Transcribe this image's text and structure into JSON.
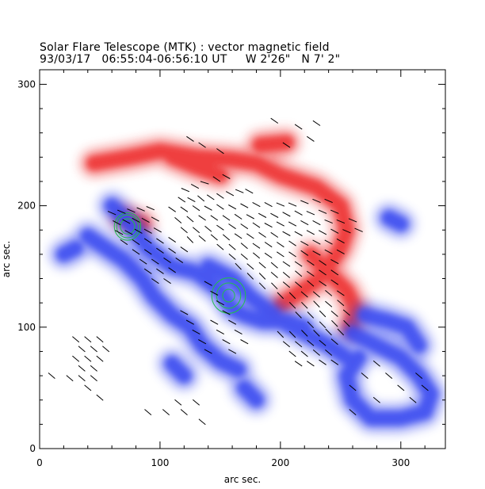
{
  "header": {
    "title": "Solar Flare Telescope (MTK) : vector magnetic field",
    "subtitle": "93/03/17   06:55:04-06:56:10 UT     W 2'26\"   N 7' 2\""
  },
  "axes": {
    "xlabel": "arc sec.",
    "ylabel": "arc sec.",
    "xlim": [
      0,
      337
    ],
    "ylim": [
      0,
      312
    ],
    "xticks": [
      "0",
      "100",
      "200",
      "300"
    ],
    "yticks": [
      "0",
      "100",
      "200",
      "300"
    ],
    "xtick_values": [
      0,
      100,
      200,
      300
    ],
    "ytick_values": [
      0,
      100,
      200,
      300
    ]
  },
  "colors": {
    "positive_polarity": "#ee3030",
    "negative_polarity": "#3a4cf0",
    "contour": "#22c04a",
    "vectors": "#000000"
  },
  "magnetogram": {
    "positive_regions": [
      [
        [
          45,
          235
        ],
        [
          75,
          240
        ],
        [
          100,
          245
        ],
        [
          130,
          240
        ],
        [
          160,
          238
        ],
        [
          180,
          235
        ],
        [
          200,
          225
        ],
        [
          230,
          215
        ],
        [
          250,
          200
        ],
        [
          255,
          180
        ],
        [
          250,
          165
        ],
        [
          240,
          150
        ],
        [
          230,
          138
        ],
        [
          215,
          128
        ],
        [
          200,
          118
        ]
      ],
      [
        [
          225,
          160
        ],
        [
          240,
          145
        ],
        [
          255,
          130
        ],
        [
          262,
          115
        ],
        [
          258,
          100
        ]
      ],
      [
        [
          70,
          190
        ],
        [
          85,
          185
        ]
      ],
      [
        [
          110,
          240
        ],
        [
          130,
          232
        ],
        [
          150,
          225
        ]
      ],
      [
        [
          183,
          250
        ],
        [
          205,
          252
        ]
      ]
    ],
    "negative_regions": [
      [
        [
          60,
          200
        ],
        [
          75,
          185
        ],
        [
          90,
          165
        ],
        [
          110,
          150
        ],
        [
          130,
          145
        ],
        [
          150,
          130
        ],
        [
          160,
          115
        ],
        [
          170,
          110
        ],
        [
          185,
          105
        ],
        [
          205,
          105
        ],
        [
          220,
          100
        ]
      ],
      [
        [
          40,
          175
        ],
        [
          55,
          165
        ],
        [
          70,
          155
        ],
        [
          85,
          140
        ],
        [
          95,
          125
        ],
        [
          110,
          110
        ],
        [
          125,
          100
        ],
        [
          135,
          85
        ],
        [
          150,
          72
        ],
        [
          165,
          65
        ]
      ],
      [
        [
          140,
          150
        ],
        [
          160,
          140
        ],
        [
          175,
          125
        ],
        [
          195,
          110
        ]
      ],
      [
        [
          260,
          95
        ],
        [
          280,
          85
        ],
        [
          300,
          75
        ],
        [
          315,
          60
        ],
        [
          325,
          45
        ],
        [
          320,
          30
        ],
        [
          300,
          25
        ],
        [
          275,
          25
        ],
        [
          260,
          40
        ],
        [
          255,
          60
        ],
        [
          265,
          75
        ]
      ],
      [
        [
          270,
          110
        ],
        [
          290,
          105
        ],
        [
          305,
          100
        ],
        [
          315,
          85
        ]
      ],
      [
        [
          200,
          105
        ],
        [
          220,
          95
        ],
        [
          240,
          85
        ],
        [
          255,
          75
        ]
      ],
      [
        [
          290,
          190
        ],
        [
          300,
          185
        ]
      ],
      [
        [
          30,
          165
        ],
        [
          20,
          160
        ]
      ],
      [
        [
          110,
          70
        ],
        [
          120,
          60
        ]
      ],
      [
        [
          170,
          50
        ],
        [
          180,
          40
        ]
      ]
    ],
    "sunspot_contours": [
      {
        "center": [
          73,
          183
        ],
        "radius": [
          11,
          9,
          6
        ]
      },
      {
        "center": [
          157,
          126
        ],
        "radius": [
          14,
          10,
          5
        ]
      }
    ],
    "vectors": [
      [
        121,
        213,
        -0.4
      ],
      [
        129,
        216,
        -0.5
      ],
      [
        137,
        219,
        -0.3
      ],
      [
        147,
        222,
        -0.6
      ],
      [
        155,
        224,
        -0.5
      ],
      [
        118,
        205,
        -0.6
      ],
      [
        126,
        205,
        -0.5
      ],
      [
        134,
        206,
        -0.7
      ],
      [
        142,
        207,
        -0.6
      ],
      [
        150,
        208,
        -0.6
      ],
      [
        158,
        210,
        -0.5
      ],
      [
        166,
        212,
        -0.4
      ],
      [
        174,
        212,
        -0.5
      ],
      [
        110,
        197,
        -0.6
      ],
      [
        120,
        197,
        -0.6
      ],
      [
        130,
        198,
        -0.6
      ],
      [
        140,
        198,
        -0.5
      ],
      [
        150,
        199,
        -0.6
      ],
      [
        160,
        199,
        -0.5
      ],
      [
        170,
        200,
        -0.5
      ],
      [
        180,
        201,
        -0.5
      ],
      [
        190,
        201,
        -0.5
      ],
      [
        200,
        201,
        -0.4
      ],
      [
        210,
        201,
        -0.4
      ],
      [
        220,
        203,
        -0.4
      ],
      [
        230,
        204,
        -0.4
      ],
      [
        240,
        204,
        -0.4
      ],
      [
        115,
        188,
        -0.7
      ],
      [
        125,
        189,
        -0.7
      ],
      [
        135,
        190,
        -0.6
      ],
      [
        145,
        190,
        -0.6
      ],
      [
        155,
        190,
        -0.6
      ],
      [
        165,
        191,
        -0.6
      ],
      [
        175,
        191,
        -0.5
      ],
      [
        185,
        192,
        -0.5
      ],
      [
        195,
        192,
        -0.5
      ],
      [
        205,
        193,
        -0.5
      ],
      [
        215,
        194,
        -0.5
      ],
      [
        225,
        194,
        -0.4
      ],
      [
        235,
        195,
        -0.4
      ],
      [
        245,
        195,
        -0.4
      ],
      [
        120,
        180,
        -0.7
      ],
      [
        130,
        180,
        -0.7
      ],
      [
        140,
        181,
        -0.7
      ],
      [
        150,
        182,
        -0.6
      ],
      [
        160,
        183,
        -0.6
      ],
      [
        170,
        183,
        -0.6
      ],
      [
        180,
        184,
        -0.6
      ],
      [
        190,
        184,
        -0.5
      ],
      [
        200,
        185,
        -0.5
      ],
      [
        210,
        185,
        -0.5
      ],
      [
        220,
        186,
        -0.5
      ],
      [
        230,
        186,
        -0.5
      ],
      [
        240,
        187,
        -0.4
      ],
      [
        250,
        187,
        -0.4
      ],
      [
        260,
        188,
        -0.4
      ],
      [
        125,
        172,
        -0.8
      ],
      [
        135,
        173,
        -0.7
      ],
      [
        145,
        174,
        -0.7
      ],
      [
        155,
        174,
        -0.7
      ],
      [
        165,
        175,
        -0.6
      ],
      [
        175,
        175,
        -0.6
      ],
      [
        185,
        176,
        -0.6
      ],
      [
        195,
        176,
        -0.6
      ],
      [
        205,
        177,
        -0.5
      ],
      [
        215,
        177,
        -0.5
      ],
      [
        225,
        178,
        -0.5
      ],
      [
        235,
        178,
        -0.5
      ],
      [
        245,
        179,
        -0.5
      ],
      [
        255,
        179,
        -0.4
      ],
      [
        265,
        180,
        -0.4
      ],
      [
        150,
        166,
        -0.7
      ],
      [
        160,
        166,
        -0.7
      ],
      [
        170,
        167,
        -0.7
      ],
      [
        180,
        167,
        -0.6
      ],
      [
        190,
        168,
        -0.6
      ],
      [
        200,
        168,
        -0.6
      ],
      [
        210,
        169,
        -0.6
      ],
      [
        220,
        169,
        -0.5
      ],
      [
        230,
        170,
        -0.5
      ],
      [
        240,
        170,
        -0.5
      ],
      [
        250,
        171,
        -0.5
      ],
      [
        160,
        158,
        -0.7
      ],
      [
        170,
        158,
        -0.7
      ],
      [
        180,
        159,
        -0.7
      ],
      [
        190,
        159,
        -0.6
      ],
      [
        200,
        160,
        -0.6
      ],
      [
        210,
        160,
        -0.6
      ],
      [
        220,
        161,
        -0.6
      ],
      [
        230,
        161,
        -0.5
      ],
      [
        240,
        162,
        -0.5
      ],
      [
        250,
        162,
        -0.5
      ],
      [
        165,
        150,
        -0.8
      ],
      [
        175,
        150,
        -0.7
      ],
      [
        185,
        151,
        -0.7
      ],
      [
        195,
        151,
        -0.7
      ],
      [
        205,
        152,
        -0.6
      ],
      [
        215,
        152,
        -0.6
      ],
      [
        225,
        153,
        -0.6
      ],
      [
        235,
        153,
        -0.6
      ],
      [
        245,
        154,
        -0.5
      ],
      [
        175,
        142,
        -0.8
      ],
      [
        185,
        142,
        -0.8
      ],
      [
        195,
        143,
        -0.7
      ],
      [
        205,
        143,
        -0.7
      ],
      [
        215,
        144,
        -0.7
      ],
      [
        225,
        144,
        -0.6
      ],
      [
        235,
        145,
        -0.6
      ],
      [
        245,
        145,
        -0.6
      ],
      [
        185,
        134,
        -0.8
      ],
      [
        195,
        134,
        -0.8
      ],
      [
        205,
        135,
        -0.7
      ],
      [
        215,
        135,
        -0.7
      ],
      [
        225,
        136,
        -0.7
      ],
      [
        235,
        136,
        -0.6
      ],
      [
        245,
        137,
        -0.6
      ],
      [
        200,
        126,
        -0.8
      ],
      [
        210,
        126,
        -0.8
      ],
      [
        220,
        127,
        -0.7
      ],
      [
        230,
        127,
        -0.7
      ],
      [
        240,
        128,
        -0.7
      ],
      [
        250,
        128,
        -0.6
      ],
      [
        210,
        118,
        -0.8
      ],
      [
        220,
        118,
        -0.8
      ],
      [
        230,
        119,
        -0.8
      ],
      [
        240,
        119,
        -0.7
      ],
      [
        250,
        120,
        -0.7
      ],
      [
        215,
        110,
        -0.8
      ],
      [
        225,
        110,
        -0.8
      ],
      [
        235,
        111,
        -0.8
      ],
      [
        245,
        111,
        -0.7
      ],
      [
        255,
        112,
        -0.7
      ],
      [
        225,
        102,
        -0.8
      ],
      [
        235,
        102,
        -0.8
      ],
      [
        245,
        103,
        -0.8
      ],
      [
        255,
        103,
        -0.8
      ],
      [
        200,
        94,
        -0.8
      ],
      [
        210,
        94,
        -0.8
      ],
      [
        220,
        95,
        -0.8
      ],
      [
        230,
        95,
        -0.8
      ],
      [
        240,
        96,
        -0.8
      ],
      [
        250,
        96,
        -0.8
      ],
      [
        205,
        86,
        -0.7
      ],
      [
        215,
        86,
        -0.7
      ],
      [
        225,
        87,
        -0.7
      ],
      [
        235,
        87,
        -0.7
      ],
      [
        245,
        88,
        -0.7
      ],
      [
        210,
        78,
        -0.7
      ],
      [
        220,
        78,
        -0.7
      ],
      [
        230,
        79,
        -0.7
      ],
      [
        240,
        79,
        -0.7
      ],
      [
        215,
        70,
        -0.6
      ],
      [
        225,
        70,
        -0.6
      ],
      [
        235,
        71,
        -0.6
      ],
      [
        245,
        71,
        -0.6
      ],
      [
        60,
        194,
        -0.4
      ],
      [
        68,
        195,
        -0.4
      ],
      [
        76,
        196,
        -0.4
      ],
      [
        84,
        197,
        -0.4
      ],
      [
        92,
        198,
        -0.4
      ],
      [
        64,
        186,
        -0.5
      ],
      [
        72,
        187,
        -0.5
      ],
      [
        80,
        188,
        -0.5
      ],
      [
        88,
        188,
        -0.5
      ],
      [
        96,
        189,
        -0.5
      ],
      [
        66,
        178,
        -0.5
      ],
      [
        74,
        178,
        -0.5
      ],
      [
        82,
        179,
        -0.5
      ],
      [
        90,
        179,
        -0.5
      ],
      [
        98,
        180,
        -0.5
      ],
      [
        70,
        170,
        -0.6
      ],
      [
        80,
        170,
        -0.6
      ],
      [
        90,
        171,
        -0.6
      ],
      [
        100,
        171,
        -0.6
      ],
      [
        110,
        172,
        -0.6
      ],
      [
        80,
        162,
        -0.6
      ],
      [
        90,
        162,
        -0.6
      ],
      [
        100,
        163,
        -0.6
      ],
      [
        110,
        163,
        -0.6
      ],
      [
        120,
        164,
        -0.6
      ],
      [
        86,
        154,
        -0.6
      ],
      [
        96,
        154,
        -0.6
      ],
      [
        106,
        155,
        -0.6
      ],
      [
        116,
        155,
        -0.6
      ],
      [
        90,
        146,
        -0.6
      ],
      [
        100,
        146,
        -0.6
      ],
      [
        110,
        147,
        -0.6
      ],
      [
        96,
        138,
        -0.6
      ],
      [
        106,
        138,
        -0.6
      ],
      [
        140,
        136,
        -0.5
      ],
      [
        145,
        128,
        -0.5
      ],
      [
        150,
        120,
        -0.5
      ],
      [
        155,
        112,
        -0.5
      ],
      [
        160,
        104,
        -0.5
      ],
      [
        165,
        96,
        -0.5
      ],
      [
        170,
        88,
        -0.5
      ],
      [
        145,
        104,
        -0.5
      ],
      [
        150,
        96,
        -0.5
      ],
      [
        155,
        88,
        -0.5
      ],
      [
        160,
        80,
        -0.5
      ],
      [
        130,
        96,
        -0.5
      ],
      [
        135,
        88,
        -0.5
      ],
      [
        140,
        80,
        -0.5
      ],
      [
        125,
        104,
        -0.5
      ],
      [
        120,
        112,
        -0.5
      ],
      [
        30,
        90,
        -0.7
      ],
      [
        40,
        90,
        -0.7
      ],
      [
        50,
        90,
        -0.7
      ],
      [
        35,
        82,
        -0.7
      ],
      [
        45,
        82,
        -0.7
      ],
      [
        55,
        82,
        -0.7
      ],
      [
        30,
        74,
        -0.7
      ],
      [
        40,
        74,
        -0.7
      ],
      [
        50,
        74,
        -0.7
      ],
      [
        35,
        66,
        -0.7
      ],
      [
        45,
        66,
        -0.7
      ],
      [
        25,
        58,
        -0.7
      ],
      [
        35,
        58,
        -0.7
      ],
      [
        45,
        58,
        -0.7
      ],
      [
        40,
        50,
        -0.7
      ],
      [
        50,
        42,
        -0.7
      ],
      [
        90,
        30,
        -0.7
      ],
      [
        105,
        30,
        -0.7
      ],
      [
        115,
        38,
        -0.7
      ],
      [
        120,
        30,
        -0.7
      ],
      [
        130,
        38,
        -0.7
      ],
      [
        135,
        22,
        -0.7
      ],
      [
        10,
        60,
        -0.7
      ],
      [
        280,
        70,
        -0.7
      ],
      [
        290,
        60,
        -0.7
      ],
      [
        300,
        50,
        -0.7
      ],
      [
        310,
        40,
        -0.7
      ],
      [
        280,
        40,
        -0.7
      ],
      [
        260,
        30,
        -0.7
      ],
      [
        315,
        60,
        -0.7
      ],
      [
        320,
        50,
        -0.7
      ],
      [
        260,
        50,
        -0.7
      ],
      [
        270,
        60,
        -0.7
      ],
      [
        195,
        270,
        -0.6
      ],
      [
        215,
        265,
        -0.6
      ],
      [
        230,
        268,
        -0.6
      ],
      [
        225,
        255,
        -0.6
      ],
      [
        205,
        250,
        -0.6
      ],
      [
        125,
        255,
        -0.6
      ],
      [
        135,
        250,
        -0.6
      ],
      [
        150,
        245,
        -0.6
      ]
    ]
  }
}
